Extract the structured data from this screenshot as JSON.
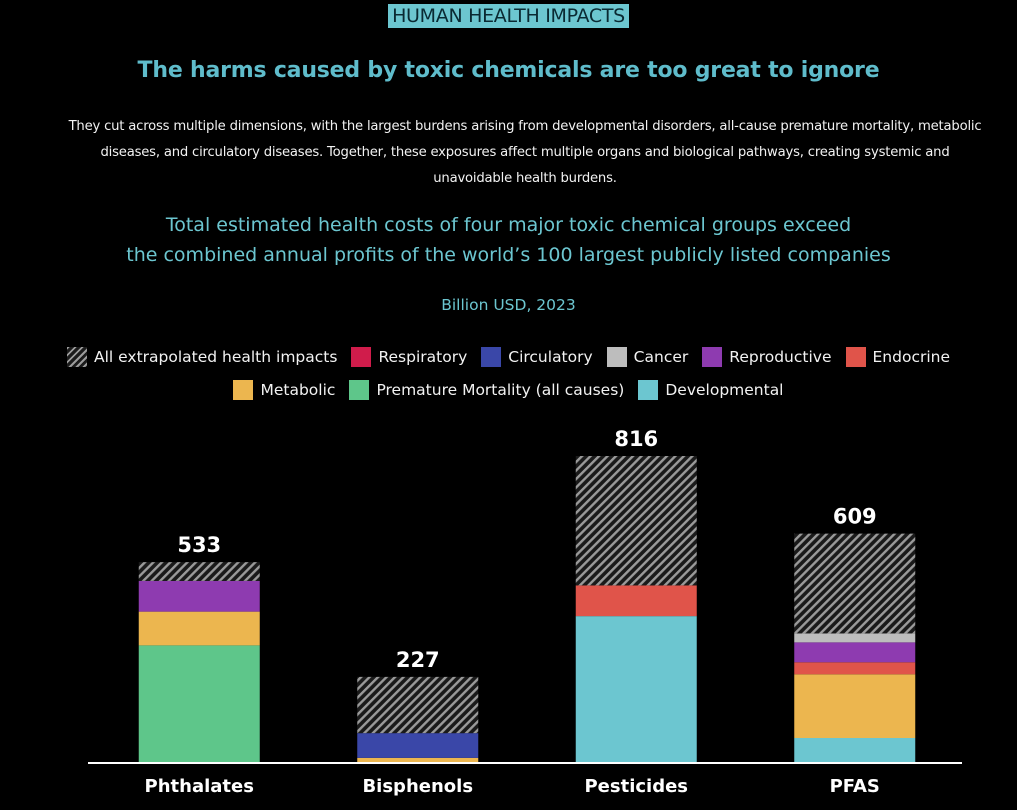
{
  "chart_data": {
    "type": "stacked-bar",
    "eyebrow": "HUMAN HEALTH IMPACTS",
    "title": "The harms caused by toxic chemicals are too great to ignore",
    "description": "They cut across multiple dimensions, with the largest burdens arising from developmental disorders, all-cause premature mortality, metabolic diseases, and circulatory diseases. Together, these exposures affect multiple organs and biological pathways, creating systemic and unavoidable health burdens.",
    "subtitle": [
      "Total estimated health costs of four major toxic chemical groups exceed",
      "the combined annual profits of the world’s 100 largest publicly listed companies"
    ],
    "unit": "Billion USD, 2023",
    "categories": [
      "Phthalates",
      "Bisphenols",
      "Pesticides",
      "PFAS"
    ],
    "totals": [
      533,
      227,
      816,
      609
    ],
    "series": [
      {
        "name": "All extrapolated health impacts",
        "color": "#8a8a8a",
        "pattern": "hatch",
        "values": [
          50,
          150,
          345,
          266
        ]
      },
      {
        "name": "Respiratory",
        "color": "#d01c4b",
        "values": [
          null,
          null,
          null,
          null
        ]
      },
      {
        "name": "Circulatory",
        "color": "#3a47a8",
        "values": [
          null,
          66,
          null,
          null
        ]
      },
      {
        "name": "Cancer",
        "color": "#bdbdbd",
        "values": [
          null,
          null,
          null,
          24
        ]
      },
      {
        "name": "Reproductive",
        "color": "#8e3bb0",
        "values": [
          82,
          null,
          null,
          53
        ]
      },
      {
        "name": "Endocrine",
        "color": "#e0544a",
        "values": [
          null,
          null,
          82,
          32
        ]
      },
      {
        "name": "Metabolic",
        "color": "#ecb64f",
        "values": [
          90,
          11,
          null,
          170
        ]
      },
      {
        "name": "Premature Mortality (all causes)",
        "color": "#5ec68a",
        "values": [
          311,
          null,
          null,
          null
        ]
      },
      {
        "name": "Developmental",
        "color": "#6cc6d0",
        "values": [
          null,
          null,
          389,
          64
        ]
      }
    ]
  }
}
